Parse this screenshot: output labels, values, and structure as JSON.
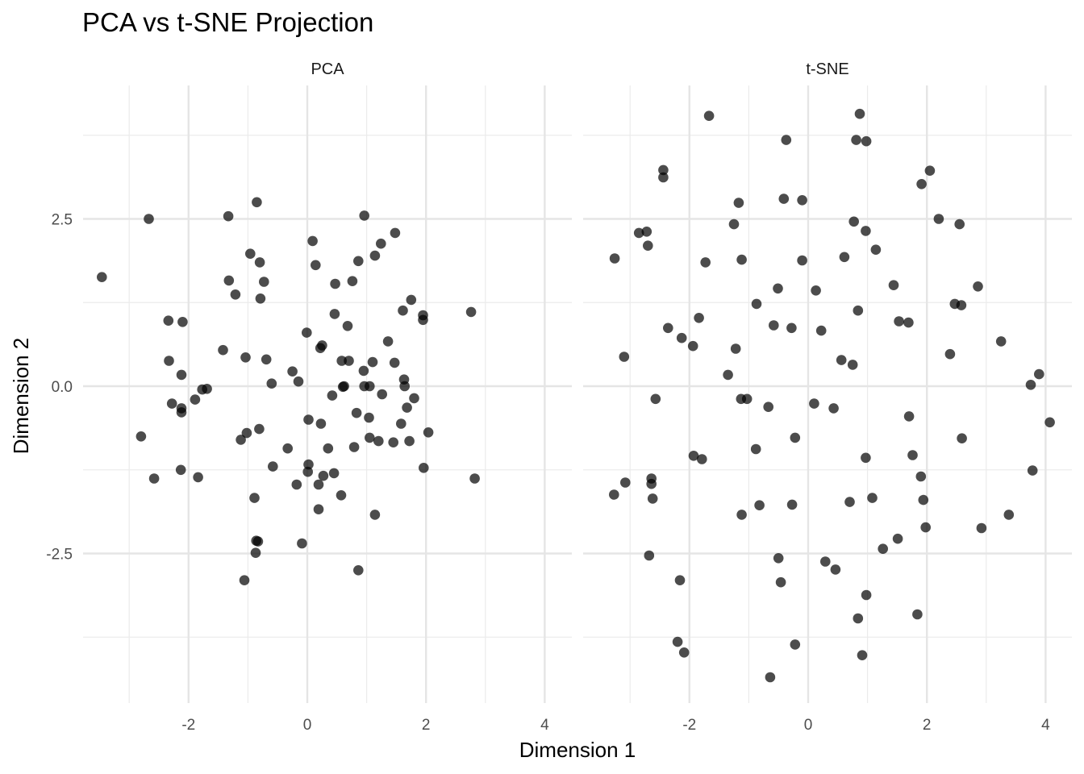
{
  "chart_data": {
    "type": "scatter",
    "title": "PCA vs t-SNE Projection",
    "xlabel": "Dimension 1",
    "ylabel": "Dimension 2",
    "grid": true,
    "point_color": "#000000",
    "point_opacity": 0.7,
    "x_ticks": [
      "-2",
      "0",
      "2",
      "4"
    ],
    "y_ticks": [
      "-2.5",
      "0.0",
      "2.5"
    ],
    "xlim": [
      -3.8,
      4.4
    ],
    "ylim": [
      -4.75,
      4.4
    ],
    "panels": [
      {
        "name": "PCA",
        "points": [
          [
            -3.46,
            1.63
          ],
          [
            -2.67,
            2.5
          ],
          [
            -2.8,
            -0.75
          ],
          [
            -2.58,
            -1.38
          ],
          [
            -2.34,
            0.98
          ],
          [
            -2.33,
            0.38
          ],
          [
            -2.28,
            -0.26
          ],
          [
            -2.1,
            0.96
          ],
          [
            -2.12,
            0.17
          ],
          [
            -2.12,
            -0.33
          ],
          [
            -2.12,
            -0.39
          ],
          [
            -2.13,
            -1.25
          ],
          [
            -1.89,
            -0.2
          ],
          [
            -1.84,
            -1.36
          ],
          [
            -1.77,
            -0.05
          ],
          [
            -1.69,
            -0.04
          ],
          [
            -1.42,
            0.54
          ],
          [
            -1.33,
            2.54
          ],
          [
            -1.32,
            1.58
          ],
          [
            -1.21,
            1.37
          ],
          [
            -1.12,
            -0.8
          ],
          [
            -1.04,
            0.43
          ],
          [
            -1.02,
            -0.7
          ],
          [
            -1.06,
            -2.9
          ],
          [
            -0.96,
            1.98
          ],
          [
            -0.89,
            -1.67
          ],
          [
            -0.85,
            2.75
          ],
          [
            -0.81,
            -0.64
          ],
          [
            -0.8,
            1.85
          ],
          [
            -0.79,
            1.31
          ],
          [
            -0.73,
            1.56
          ],
          [
            -0.69,
            0.4
          ],
          [
            -0.6,
            0.04
          ],
          [
            -0.58,
            -1.2
          ],
          [
            -0.86,
            -2.31
          ],
          [
            -0.83,
            -2.32
          ],
          [
            -0.87,
            -2.49
          ],
          [
            -0.33,
            -0.93
          ],
          [
            -0.25,
            0.22
          ],
          [
            -0.18,
            -1.47
          ],
          [
            -0.15,
            0.07
          ],
          [
            -0.09,
            -2.35
          ],
          [
            -0.01,
            0.8
          ],
          [
            0.02,
            -0.5
          ],
          [
            0.02,
            -1.17
          ],
          [
            0.01,
            -1.28
          ],
          [
            0.09,
            2.17
          ],
          [
            0.14,
            1.81
          ],
          [
            0.22,
            0.57
          ],
          [
            0.25,
            0.61
          ],
          [
            0.23,
            -0.56
          ],
          [
            0.19,
            -1.47
          ],
          [
            0.19,
            -1.84
          ],
          [
            0.27,
            -1.34
          ],
          [
            0.35,
            -0.93
          ],
          [
            0.42,
            -0.14
          ],
          [
            0.46,
            1.08
          ],
          [
            0.45,
            -1.3
          ],
          [
            0.47,
            1.53
          ],
          [
            0.58,
            0.38
          ],
          [
            0.6,
            -0.01
          ],
          [
            0.62,
            0.0
          ],
          [
            0.57,
            -1.63
          ],
          [
            0.68,
            0.9
          ],
          [
            0.7,
            0.38
          ],
          [
            0.76,
            1.57
          ],
          [
            0.79,
            -0.91
          ],
          [
            0.83,
            -0.4
          ],
          [
            0.86,
            1.87
          ],
          [
            0.86,
            -2.75
          ],
          [
            0.96,
            2.55
          ],
          [
            0.95,
            0.23
          ],
          [
            0.96,
            0.0
          ],
          [
            1.04,
            -0.47
          ],
          [
            1.05,
            -0.77
          ],
          [
            1.05,
            0.0
          ],
          [
            1.1,
            0.36
          ],
          [
            1.14,
            1.95
          ],
          [
            1.14,
            -1.92
          ],
          [
            1.2,
            -0.82
          ],
          [
            1.24,
            2.13
          ],
          [
            1.26,
            -0.12
          ],
          [
            1.36,
            0.67
          ],
          [
            1.45,
            -0.84
          ],
          [
            1.47,
            0.35
          ],
          [
            1.48,
            2.29
          ],
          [
            1.58,
            -0.56
          ],
          [
            1.61,
            1.13
          ],
          [
            1.63,
            0.1
          ],
          [
            1.64,
            0.0
          ],
          [
            1.68,
            -0.32
          ],
          [
            1.72,
            -0.82
          ],
          [
            1.75,
            1.29
          ],
          [
            1.8,
            -0.18
          ],
          [
            1.95,
            1.06
          ],
          [
            1.95,
            0.99
          ],
          [
            1.96,
            -1.22
          ],
          [
            2.04,
            -0.69
          ],
          [
            2.76,
            1.11
          ],
          [
            2.82,
            -1.38
          ]
        ]
      },
      {
        "name": "t-SNE",
        "points": [
          [
            -3.26,
            1.91
          ],
          [
            -3.1,
            0.44
          ],
          [
            -3.27,
            -1.62
          ],
          [
            -3.08,
            -1.44
          ],
          [
            -2.85,
            2.29
          ],
          [
            -2.72,
            2.31
          ],
          [
            -2.7,
            2.1
          ],
          [
            -2.64,
            -1.46
          ],
          [
            -2.64,
            -1.38
          ],
          [
            -2.62,
            -1.68
          ],
          [
            -2.68,
            -2.53
          ],
          [
            -2.57,
            -0.19
          ],
          [
            -2.44,
            3.23
          ],
          [
            -2.44,
            3.12
          ],
          [
            -2.36,
            0.87
          ],
          [
            -2.16,
            -2.9
          ],
          [
            -2.13,
            0.72
          ],
          [
            -2.2,
            -3.82
          ],
          [
            -2.09,
            -3.98
          ],
          [
            -1.94,
            0.6
          ],
          [
            -1.93,
            -1.04
          ],
          [
            -1.84,
            1.02
          ],
          [
            -1.79,
            -1.09
          ],
          [
            -1.73,
            1.85
          ],
          [
            -1.67,
            4.04
          ],
          [
            -1.35,
            0.17
          ],
          [
            -1.25,
            2.42
          ],
          [
            -1.22,
            0.56
          ],
          [
            -1.17,
            2.74
          ],
          [
            -1.13,
            -0.19
          ],
          [
            -1.12,
            1.89
          ],
          [
            -1.12,
            -1.92
          ],
          [
            -1.03,
            -0.19
          ],
          [
            -0.87,
            1.23
          ],
          [
            -0.88,
            -0.94
          ],
          [
            -0.82,
            -1.78
          ],
          [
            -0.67,
            -0.31
          ],
          [
            -0.58,
            0.91
          ],
          [
            -0.64,
            -4.35
          ],
          [
            -0.51,
            1.46
          ],
          [
            -0.5,
            -2.57
          ],
          [
            -0.46,
            -2.93
          ],
          [
            -0.41,
            2.8
          ],
          [
            -0.37,
            3.68
          ],
          [
            -0.28,
            0.87
          ],
          [
            -0.27,
            -1.77
          ],
          [
            -0.22,
            -0.77
          ],
          [
            -0.22,
            -3.86
          ],
          [
            -0.1,
            1.88
          ],
          [
            -0.1,
            2.78
          ],
          [
            0.1,
            -0.26
          ],
          [
            0.13,
            1.43
          ],
          [
            0.22,
            0.83
          ],
          [
            0.29,
            -2.62
          ],
          [
            0.46,
            -2.74
          ],
          [
            0.43,
            -0.33
          ],
          [
            0.56,
            0.39
          ],
          [
            0.61,
            1.93
          ],
          [
            0.7,
            -1.73
          ],
          [
            0.75,
            0.32
          ],
          [
            0.77,
            2.46
          ],
          [
            0.81,
            3.68
          ],
          [
            0.84,
            -3.47
          ],
          [
            0.84,
            1.13
          ],
          [
            0.87,
            4.07
          ],
          [
            0.91,
            -4.02
          ],
          [
            0.97,
            2.32
          ],
          [
            0.98,
            3.66
          ],
          [
            0.97,
            -1.07
          ],
          [
            0.98,
            -3.12
          ],
          [
            1.08,
            -1.67
          ],
          [
            1.14,
            2.04
          ],
          [
            1.26,
            -2.43
          ],
          [
            1.44,
            1.51
          ],
          [
            1.51,
            -2.28
          ],
          [
            1.53,
            0.97
          ],
          [
            1.69,
            0.95
          ],
          [
            1.7,
            -0.45
          ],
          [
            1.76,
            -1.03
          ],
          [
            1.84,
            -3.41
          ],
          [
            1.9,
            -1.35
          ],
          [
            1.91,
            3.02
          ],
          [
            1.94,
            -1.7
          ],
          [
            1.98,
            -2.11
          ],
          [
            2.05,
            3.22
          ],
          [
            2.2,
            2.5
          ],
          [
            2.39,
            0.48
          ],
          [
            2.47,
            1.23
          ],
          [
            2.55,
            2.42
          ],
          [
            2.58,
            1.21
          ],
          [
            2.59,
            -0.78
          ],
          [
            2.86,
            1.49
          ],
          [
            2.92,
            -2.12
          ],
          [
            3.25,
            0.67
          ],
          [
            3.38,
            -1.92
          ],
          [
            3.75,
            0.02
          ],
          [
            3.78,
            -1.26
          ],
          [
            3.89,
            0.18
          ],
          [
            4.07,
            -0.54
          ]
        ]
      }
    ]
  }
}
